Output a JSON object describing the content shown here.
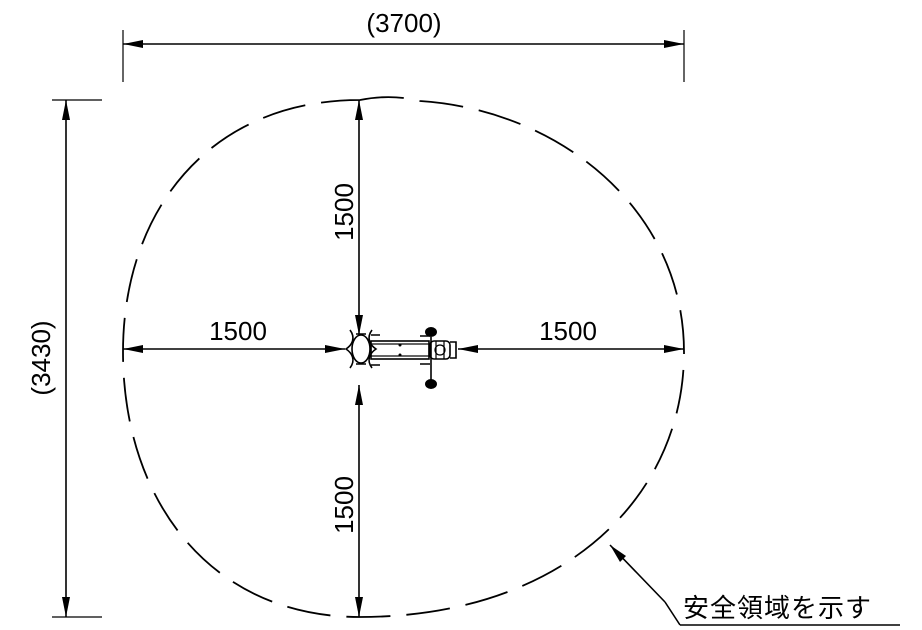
{
  "dimensions": {
    "overall_width": "(3700)",
    "overall_height": "(3430)",
    "radius_top": "1500",
    "radius_bottom": "1500",
    "radius_left": "1500",
    "radius_right": "1500"
  },
  "annotation": {
    "safety_area_label": "安全領域を示す"
  }
}
